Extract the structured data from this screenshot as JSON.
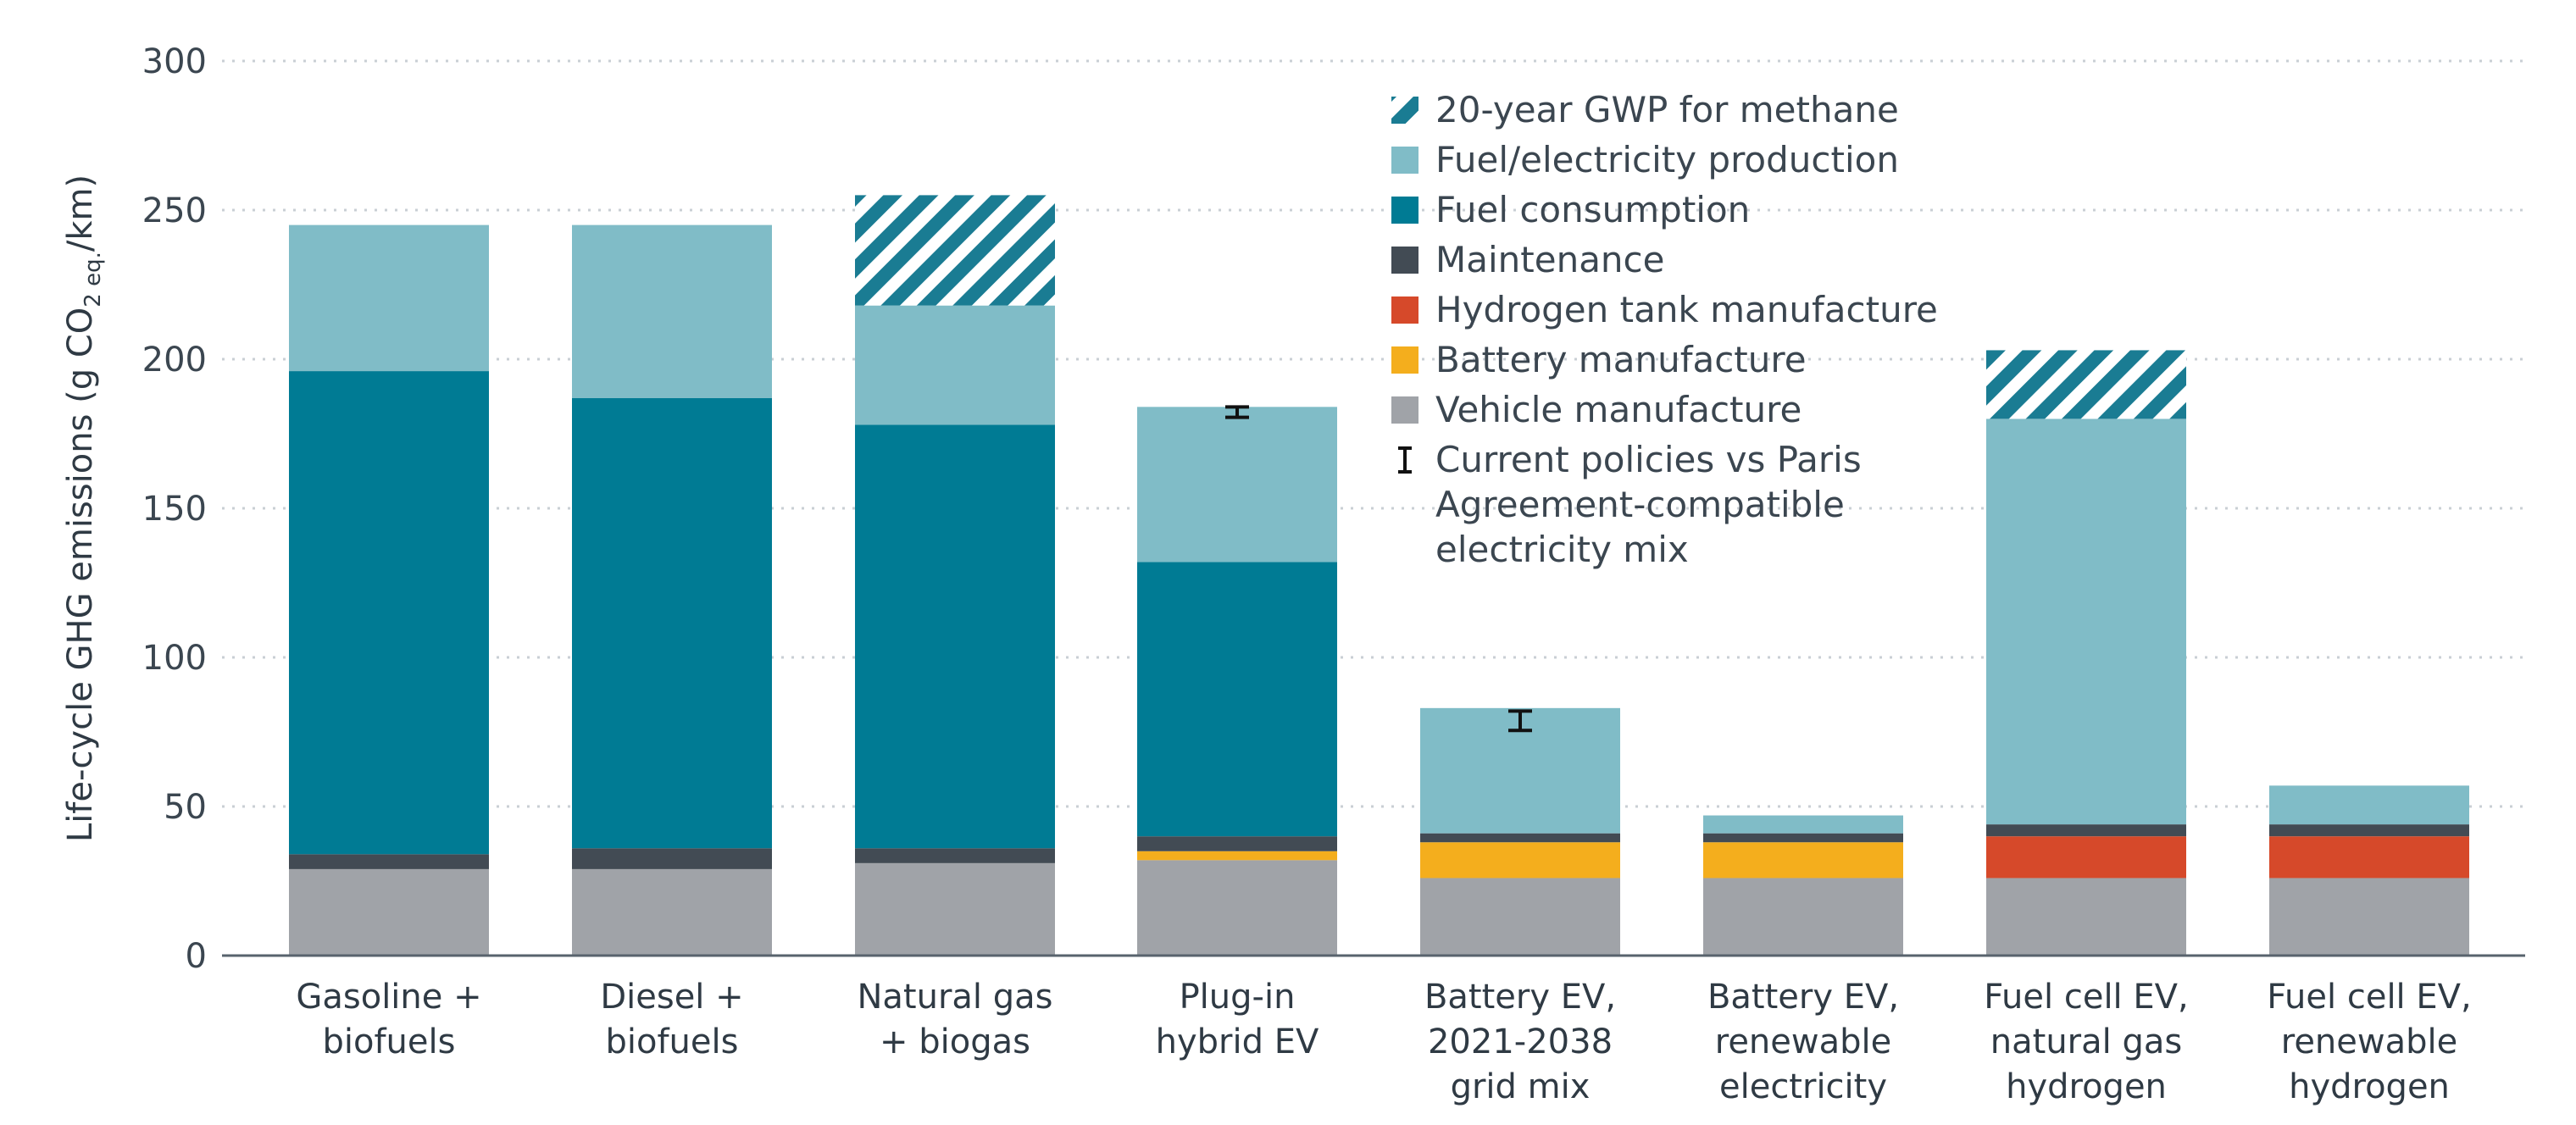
{
  "chart_data": {
    "type": "bar",
    "stacked": true,
    "ylabel": "Life-cycle GHG emissions (g CO",
    "ylabel_sub": "2 eq.",
    "ylabel_tail": "/km)",
    "ylim": [
      0,
      300
    ],
    "yticks": [
      "0",
      "50",
      "100",
      "150",
      "200",
      "250",
      "300"
    ],
    "grid": true,
    "legend_position": "top-right",
    "categories": [
      [
        "Gasoline +",
        "biofuels"
      ],
      [
        "Diesel +",
        "biofuels"
      ],
      [
        "Natural gas",
        "+ biogas"
      ],
      [
        "Plug-in",
        "hybrid EV"
      ],
      [
        "Battery EV,",
        "2021-2038",
        "grid mix"
      ],
      [
        "Battery EV,",
        "renewable",
        "electricity"
      ],
      [
        "Fuel cell EV,",
        "natural gas",
        "hydrogen"
      ],
      [
        "Fuel cell EV,",
        "renewable",
        "hydrogen"
      ]
    ],
    "series": [
      {
        "name": "Vehicle manufacture",
        "color": "#a0a3a8",
        "values": [
          29,
          29,
          31,
          32,
          26,
          26,
          26,
          26
        ]
      },
      {
        "name": "Battery manufacture",
        "color": "#f4ae1d",
        "values": [
          0,
          0,
          0,
          3,
          12,
          12,
          0,
          0
        ]
      },
      {
        "name": "Hydrogen tank manufacture",
        "color": "#d6492a",
        "values": [
          0,
          0,
          0,
          0,
          0,
          0,
          14,
          14
        ]
      },
      {
        "name": "Maintenance",
        "color": "#424b54",
        "values": [
          5,
          7,
          5,
          5,
          3,
          3,
          4,
          4
        ]
      },
      {
        "name": "Fuel consumption",
        "color": "#007b94",
        "values": [
          162,
          151,
          142,
          92,
          0,
          0,
          0,
          0
        ]
      },
      {
        "name": "Fuel/electricity production",
        "color": "#80bcc7",
        "values": [
          49,
          58,
          40,
          52,
          42,
          6,
          136,
          13
        ]
      },
      {
        "name": "20-year GWP for methane",
        "color": "#1a7c93",
        "pattern": "hatch",
        "values": [
          0,
          0,
          37,
          0,
          0,
          0,
          23,
          0
        ]
      }
    ],
    "error_bars": [
      {
        "category_index": 3,
        "low": 180.5,
        "high": 184
      },
      {
        "category_index": 4,
        "low": 75.5,
        "high": 82
      }
    ],
    "legend": [
      {
        "label": "20-year GWP for methane",
        "swatch": "hatch",
        "color": "#1a7c93"
      },
      {
        "label": "Fuel/electricity production",
        "swatch": "box",
        "color": "#80bcc7"
      },
      {
        "label": "Fuel consumption",
        "swatch": "box",
        "color": "#007b94"
      },
      {
        "label": "Maintenance",
        "swatch": "box",
        "color": "#424b54"
      },
      {
        "label": "Hydrogen tank manufacture",
        "swatch": "box",
        "color": "#d6492a"
      },
      {
        "label": "Battery manufacture",
        "swatch": "box",
        "color": "#f4ae1d"
      },
      {
        "label": "Vehicle manufacture",
        "swatch": "box",
        "color": "#a0a3a8"
      },
      {
        "label": [
          "Current policies vs Paris",
          "Agreement-compatible",
          "electricity mix"
        ],
        "swatch": "errorbar",
        "color": "#000000"
      }
    ]
  }
}
